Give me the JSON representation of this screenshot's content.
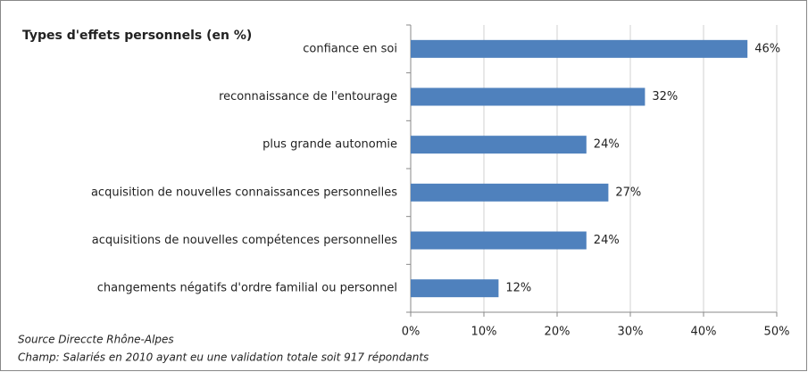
{
  "chart_data": {
    "type": "hbar",
    "title": "Types d'effets personnels (en %)",
    "categories": [
      "confiance en soi",
      "reconnaissance de l'entourage",
      "plus grande autonomie",
      "acquisition de nouvelles connaissances personnelles",
      "acquisitions de nouvelles compétences personnelles",
      "changements négatifs d'ordre familial ou personnel"
    ],
    "values": [
      46,
      32,
      24,
      27,
      24,
      12
    ],
    "value_labels": [
      "46%",
      "32%",
      "24%",
      "27%",
      "24%",
      "12%"
    ],
    "color": "#4f81bd",
    "xlim": [
      0,
      50
    ],
    "xticks": [
      {
        "value": 0,
        "label": "0%"
      },
      {
        "value": 10,
        "label": "10%"
      },
      {
        "value": 20,
        "label": "20%"
      },
      {
        "value": 30,
        "label": "30%"
      },
      {
        "value": 40,
        "label": "40%"
      },
      {
        "value": 50,
        "label": "50%"
      }
    ],
    "grid": true,
    "annotations": [
      "Source Direccte Rhône-Alpes",
      "Champ: Salariés  en 2010 ayant eu une validation totale soit 917 répondants"
    ]
  }
}
